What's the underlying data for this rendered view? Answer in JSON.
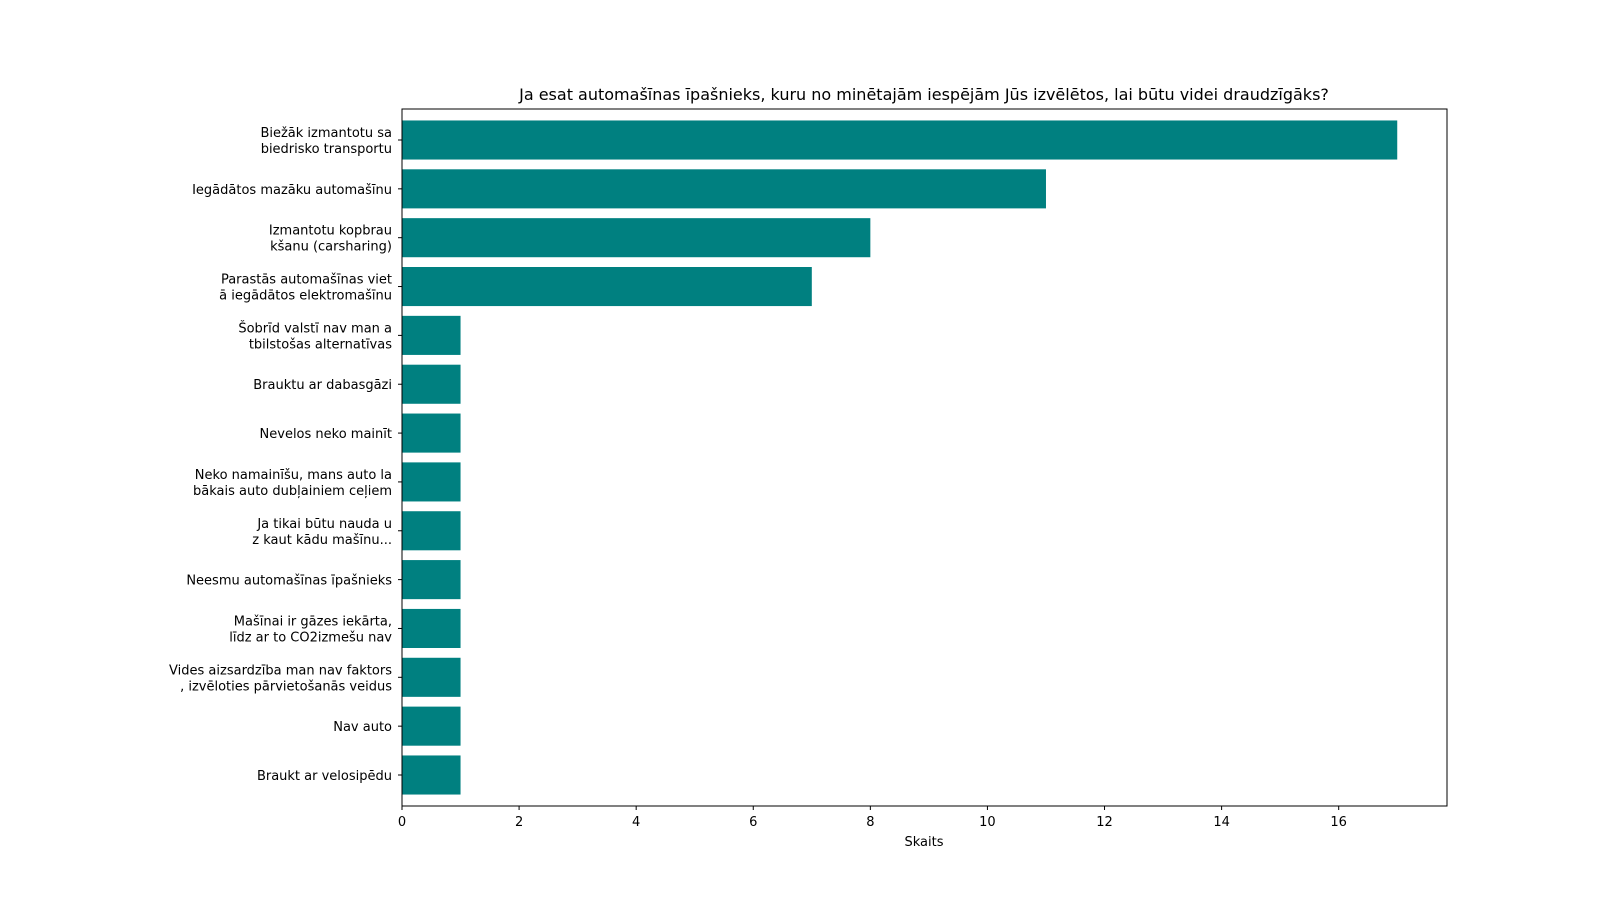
{
  "chart_data": {
    "type": "bar",
    "orientation": "horizontal",
    "title": "Ja esat automašīnas īpašnieks, kuru no minētajām iespējām Jūs izvēlētos, lai būtu videi draudzīgāks?",
    "xlabel": "Skaits",
    "ylabel": "",
    "xlim": [
      0,
      17.85
    ],
    "xticks": [
      0,
      2,
      4,
      6,
      8,
      10,
      12,
      14,
      16
    ],
    "grid": false,
    "bar_color": "#008080",
    "categories": [
      "Biežāk izmantotu sa\nbiedrisko transportu",
      "Iegādātos mazāku automašīnu",
      "Izmantotu kopbrau\nkšanu (carsharing)",
      "Parastās automašīnas viet\nā iegādātos elektromašīnu",
      "Šobrīd valstī nav man a\ntbilstošas alternatīvas",
      "Brauktu ar dabasgāzi",
      "Nevelos neko mainīt",
      "Neko namainīšu, mans auto la\nbākais auto dubļainiem ceļiem",
      "Ja tikai būtu nauda u\nz kaut kādu mašīnu...",
      "Neesmu automašīnas īpašnieks",
      "Mašīnai ir gāzes iekārta,\nlīdz ar to CO2izmešu nav",
      "Vides aizsardzība man nav faktors\n, izvēloties pārvietošanās veidus",
      "Nav auto",
      "Braukt ar velosipēdu "
    ],
    "values": [
      17,
      11,
      8,
      7,
      1,
      1,
      1,
      1,
      1,
      1,
      1,
      1,
      1,
      1
    ]
  }
}
